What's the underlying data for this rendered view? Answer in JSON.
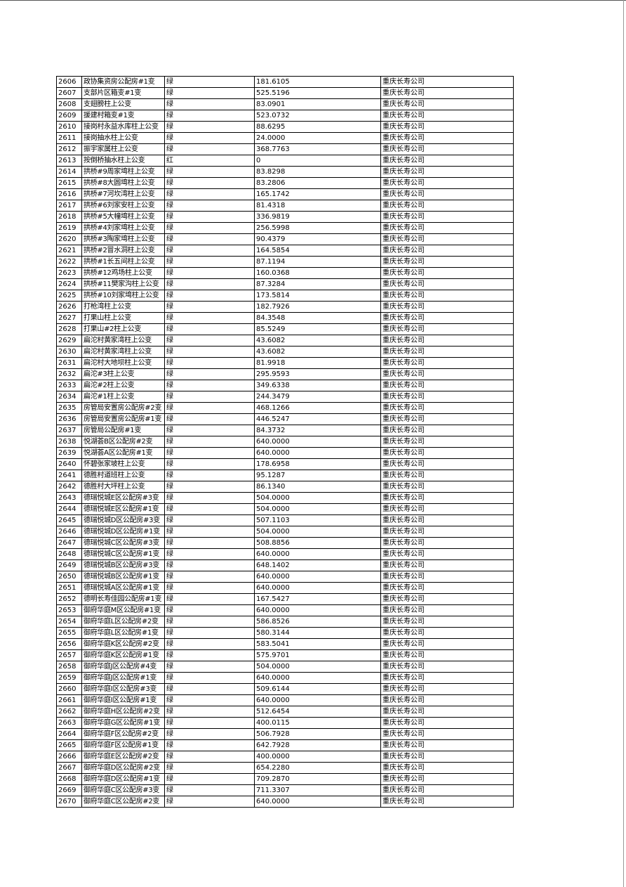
{
  "table": {
    "rows": [
      [
        "2606",
        "政协集资房公配房#1变",
        "绿",
        "181.6105",
        "重庆长寿公司"
      ],
      [
        "2607",
        "支部片区箱变#1变",
        "绿",
        "525.5196",
        "重庆长寿公司"
      ],
      [
        "2608",
        "支翅膀柱上公变",
        "绿",
        "83.0901",
        "重庆长寿公司"
      ],
      [
        "2609",
        "援建村箱变#1变",
        "绿",
        "523.0732",
        "重庆长寿公司"
      ],
      [
        "2610",
        "接岗村永益水库柱上公变",
        "绿",
        "88.6295",
        "重庆长寿公司"
      ],
      [
        "2611",
        "接岗抽水柱上公变",
        "绿",
        "24.0000",
        "重庆长寿公司"
      ],
      [
        "2612",
        "振宇家属柱上公变",
        "绿",
        "368.7763",
        "重庆长寿公司"
      ],
      [
        "2613",
        "按倒桥抽水柱上公变",
        "红",
        "0",
        "重庆长寿公司"
      ],
      [
        "2614",
        "拱桥#9周家塆柱上公变",
        "绿",
        "83.8298",
        "重庆长寿公司"
      ],
      [
        "2615",
        "拱桥#8大圆塆柱上公变",
        "绿",
        "83.2806",
        "重庆长寿公司"
      ],
      [
        "2616",
        "拱桥#7河坎湾柱上公变",
        "绿",
        "165.1742",
        "重庆长寿公司"
      ],
      [
        "2617",
        "拱桥#6刘家安柱上公变",
        "绿",
        "81.4318",
        "重庆长寿公司"
      ],
      [
        "2618",
        "拱桥#5大幢塆柱上公变",
        "绿",
        "336.9819",
        "重庆长寿公司"
      ],
      [
        "2619",
        "拱桥#4刘家塆柱上公变",
        "绿",
        "256.5998",
        "重庆长寿公司"
      ],
      [
        "2620",
        "拱桥#3陶家塆柱上公变",
        "绿",
        "90.4379",
        "重庆长寿公司"
      ],
      [
        "2621",
        "拱桥#2冒水洞柱上公变",
        "绿",
        "164.5854",
        "重庆长寿公司"
      ],
      [
        "2622",
        "拱桥#1长五间柱上公变",
        "绿",
        "87.1194",
        "重庆长寿公司"
      ],
      [
        "2623",
        "拱桥#12鸡场柱上公变",
        "绿",
        "160.0368",
        "重庆长寿公司"
      ],
      [
        "2624",
        "拱桥#11樊家沟柱上公变",
        "绿",
        "87.3284",
        "重庆长寿公司"
      ],
      [
        "2625",
        "拱桥#10刘家塆柱上公变",
        "绿",
        "173.5814",
        "重庆长寿公司"
      ],
      [
        "2626",
        "打枪湾柱上公变",
        "绿",
        "182.7926",
        "重庆长寿公司"
      ],
      [
        "2627",
        "打果山柱上公变",
        "绿",
        "84.3548",
        "重庆长寿公司"
      ],
      [
        "2628",
        "打果山#2柱上公变",
        "绿",
        "85.5249",
        "重庆长寿公司"
      ],
      [
        "2629",
        "扁沱村黄家湾柱上公变",
        "绿",
        "43.6082",
        "重庆长寿公司"
      ],
      [
        "2630",
        "扁沱村黄家湾柱上公变",
        "绿",
        "43.6082",
        "重庆长寿公司"
      ],
      [
        "2631",
        "扁沱村大地坝柱上公变",
        "绿",
        "81.9918",
        "重庆长寿公司"
      ],
      [
        "2632",
        "扁沱#3柱上公变",
        "绿",
        "295.9593",
        "重庆长寿公司"
      ],
      [
        "2633",
        "扁沱#2柱上公变",
        "绿",
        "349.6338",
        "重庆长寿公司"
      ],
      [
        "2634",
        "扁沱#1柱上公变",
        "绿",
        "244.3479",
        "重庆长寿公司"
      ],
      [
        "2635",
        "房管局安置房公配房#2变",
        "绿",
        "468.1266",
        "重庆长寿公司"
      ],
      [
        "2636",
        "房管局安置房公配房#1变",
        "绿",
        "446.5247",
        "重庆长寿公司"
      ],
      [
        "2637",
        "房管局公配房#1变",
        "绿",
        "84.3732",
        "重庆长寿公司"
      ],
      [
        "2638",
        "悦湖荟B区公配房#2变",
        "绿",
        "640.0000",
        "重庆长寿公司"
      ],
      [
        "2639",
        "悦湖荟A区公配房#1变",
        "绿",
        "640.0000",
        "重庆长寿公司"
      ],
      [
        "2640",
        "怀碧张家坡柱上公变",
        "绿",
        "178.6958",
        "重庆长寿公司"
      ],
      [
        "2641",
        "德胜村道班柱上公变",
        "绿",
        "95.1287",
        "重庆长寿公司"
      ],
      [
        "2642",
        "德胜村大坪柱上公变",
        "绿",
        "86.1340",
        "重庆长寿公司"
      ],
      [
        "2643",
        "德瑞悦城E区公配房#3变",
        "绿",
        "504.0000",
        "重庆长寿公司"
      ],
      [
        "2644",
        "德瑞悦城E区公配房#1变",
        "绿",
        "504.0000",
        "重庆长寿公司"
      ],
      [
        "2645",
        "德瑞悦城D区公配房#3变",
        "绿",
        "507.1103",
        "重庆长寿公司"
      ],
      [
        "2646",
        "德瑞悦城D区公配房#1变",
        "绿",
        "504.0000",
        "重庆长寿公司"
      ],
      [
        "2647",
        "德瑞悦城C区公配房#3变",
        "绿",
        "508.8856",
        "重庆长寿公司"
      ],
      [
        "2648",
        "德瑞悦城C区公配房#1变",
        "绿",
        "640.0000",
        "重庆长寿公司"
      ],
      [
        "2649",
        "德瑞悦城B区公配房#3变",
        "绿",
        "648.1402",
        "重庆长寿公司"
      ],
      [
        "2650",
        "德瑞悦城B区公配房#1变",
        "绿",
        "640.0000",
        "重庆长寿公司"
      ],
      [
        "2651",
        "德瑞悦城A区公配房#1变",
        "绿",
        "640.0000",
        "重庆长寿公司"
      ],
      [
        "2652",
        "德明长寿佳园公配房#1变",
        "绿",
        "167.5427",
        "重庆长寿公司"
      ],
      [
        "2653",
        "御府华庭M区公配房#1变",
        "绿",
        "640.0000",
        "重庆长寿公司"
      ],
      [
        "2654",
        "御府华庭L区公配房#2变",
        "绿",
        "586.8526",
        "重庆长寿公司"
      ],
      [
        "2655",
        "御府华庭L区公配房#1变",
        "绿",
        "580.3144",
        "重庆长寿公司"
      ],
      [
        "2656",
        "御府华庭K区公配房#2变",
        "绿",
        "583.5041",
        "重庆长寿公司"
      ],
      [
        "2657",
        "御府华庭K区公配房#1变",
        "绿",
        "575.9701",
        "重庆长寿公司"
      ],
      [
        "2658",
        "御府华庭J区公配房#4变",
        "绿",
        "504.0000",
        "重庆长寿公司"
      ],
      [
        "2659",
        "御府华庭J区公配房#1变",
        "绿",
        "640.0000",
        "重庆长寿公司"
      ],
      [
        "2660",
        "御府华庭I区公配房#3变",
        "绿",
        "509.6144",
        "重庆长寿公司"
      ],
      [
        "2661",
        "御府华庭I区公配房#1变",
        "绿",
        "640.0000",
        "重庆长寿公司"
      ],
      [
        "2662",
        "御府华庭H区公配房#2变",
        "绿",
        "512.6454",
        "重庆长寿公司"
      ],
      [
        "2663",
        "御府华庭G区公配房#1变",
        "绿",
        "400.0115",
        "重庆长寿公司"
      ],
      [
        "2664",
        "御府华庭F区公配房#2变",
        "绿",
        "506.7928",
        "重庆长寿公司"
      ],
      [
        "2665",
        "御府华庭F区公配房#1变",
        "绿",
        "642.7928",
        "重庆长寿公司"
      ],
      [
        "2666",
        "御府华庭E区公配房#2变",
        "绿",
        "400.0000",
        "重庆长寿公司"
      ],
      [
        "2667",
        "御府华庭D区公配房#2变",
        "绿",
        "654.2280",
        "重庆长寿公司"
      ],
      [
        "2668",
        "御府华庭D区公配房#1变",
        "绿",
        "709.2870",
        "重庆长寿公司"
      ],
      [
        "2669",
        "御府华庭C区公配房#3变",
        "绿",
        "711.3307",
        "重庆长寿公司"
      ],
      [
        "2670",
        "御府华庭C区公配房#2变",
        "绿",
        "640.0000",
        "重庆长寿公司"
      ]
    ]
  }
}
